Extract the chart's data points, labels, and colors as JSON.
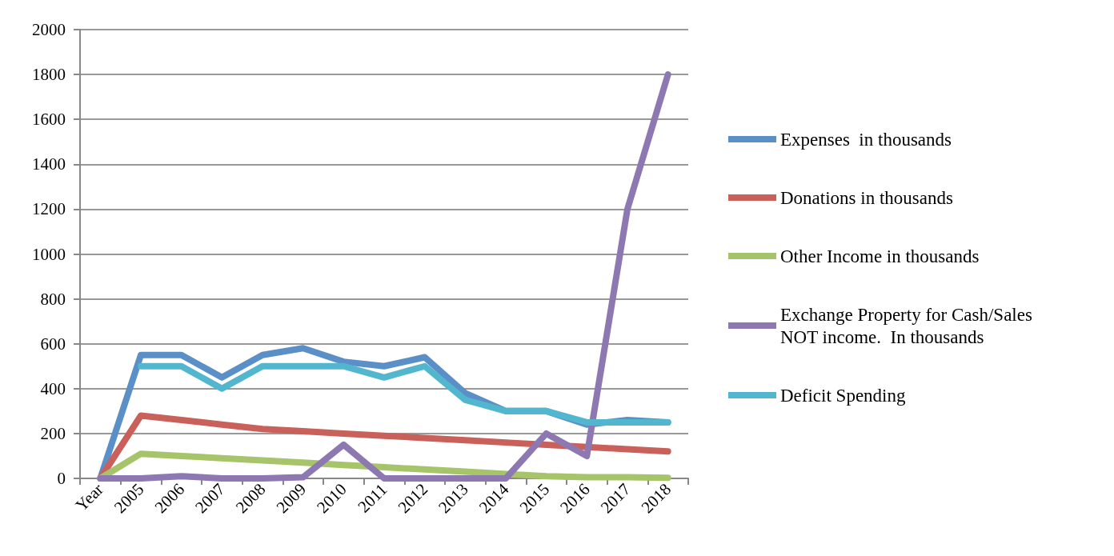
{
  "chart_data": {
    "type": "line",
    "categories": [
      "Year",
      "2005",
      "2006",
      "2007",
      "2008",
      "2009",
      "2010",
      "2011",
      "2012",
      "2013",
      "2014",
      "2015",
      "2016",
      "2017",
      "2018"
    ],
    "series": [
      {
        "name": "Expenses  in thousands",
        "color": "#5b8fc7",
        "values": [
          0,
          550,
          550,
          450,
          550,
          580,
          520,
          500,
          540,
          380,
          300,
          300,
          240,
          260,
          250
        ]
      },
      {
        "name": "Donations in thousands",
        "color": "#c9605a",
        "values": [
          0,
          280,
          260,
          240,
          220,
          210,
          200,
          190,
          180,
          170,
          160,
          150,
          140,
          130,
          120
        ]
      },
      {
        "name": "Other Income in thousands",
        "color": "#a6c46a",
        "values": [
          0,
          110,
          100,
          90,
          80,
          70,
          60,
          50,
          40,
          30,
          20,
          10,
          5,
          5,
          3
        ]
      },
      {
        "name": "Exchange Property for Cash/Sales NOT income.  In thousands",
        "color": "#8e78b2",
        "values": [
          0,
          0,
          10,
          0,
          0,
          5,
          150,
          0,
          0,
          0,
          0,
          200,
          100,
          1200,
          1800
        ]
      },
      {
        "name": "Deficit Spending",
        "color": "#52b6cf",
        "values": [
          null,
          500,
          500,
          400,
          500,
          500,
          500,
          450,
          500,
          350,
          300,
          300,
          250,
          250,
          250
        ]
      }
    ],
    "ylim": [
      0,
      2000
    ],
    "yticks": [
      0,
      200,
      400,
      600,
      800,
      1000,
      1200,
      1400,
      1600,
      1800,
      2000
    ],
    "grid": "y",
    "legend": "right",
    "marker": "none",
    "line_style": "solid"
  }
}
